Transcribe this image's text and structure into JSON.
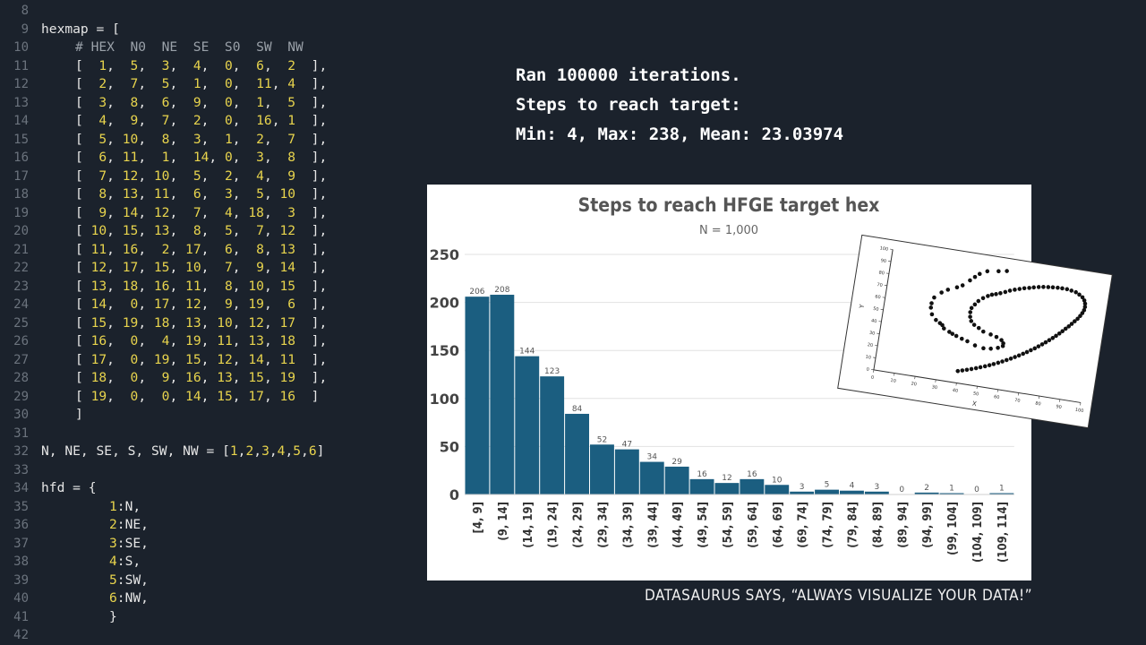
{
  "editor": {
    "line_start": 8,
    "lines": [
      {
        "t": "",
        "i": 0
      },
      {
        "t": "hexmap = [",
        "i": 0
      },
      {
        "t": "# HEX  N0  NE  SE  S0  SW  NW",
        "i": 1,
        "comment": true
      },
      {
        "t": "[  1,  5,  3,  4,  0,  6,  2  ],",
        "i": 1
      },
      {
        "t": "[  2,  7,  5,  1,  0,  11, 4  ],",
        "i": 1
      },
      {
        "t": "[  3,  8,  6,  9,  0,  1,  5  ],",
        "i": 1
      },
      {
        "t": "[  4,  9,  7,  2,  0,  16, 1  ],",
        "i": 1
      },
      {
        "t": "[  5, 10,  8,  3,  1,  2,  7  ],",
        "i": 1
      },
      {
        "t": "[  6, 11,  1,  14, 0,  3,  8  ],",
        "i": 1
      },
      {
        "t": "[  7, 12, 10,  5,  2,  4,  9  ],",
        "i": 1
      },
      {
        "t": "[  8, 13, 11,  6,  3,  5, 10  ],",
        "i": 1
      },
      {
        "t": "[  9, 14, 12,  7,  4, 18,  3  ],",
        "i": 1
      },
      {
        "t": "[ 10, 15, 13,  8,  5,  7, 12  ],",
        "i": 1
      },
      {
        "t": "[ 11, 16,  2, 17,  6,  8, 13  ],",
        "i": 1
      },
      {
        "t": "[ 12, 17, 15, 10,  7,  9, 14  ],",
        "i": 1
      },
      {
        "t": "[ 13, 18, 16, 11,  8, 10, 15  ],",
        "i": 1
      },
      {
        "t": "[ 14,  0, 17, 12,  9, 19,  6  ],",
        "i": 1
      },
      {
        "t": "[ 15, 19, 18, 13, 10, 12, 17  ],",
        "i": 1
      },
      {
        "t": "[ 16,  0,  4, 19, 11, 13, 18  ],",
        "i": 1
      },
      {
        "t": "[ 17,  0, 19, 15, 12, 14, 11  ],",
        "i": 1
      },
      {
        "t": "[ 18,  0,  9, 16, 13, 15, 19  ],",
        "i": 1
      },
      {
        "t": "[ 19,  0,  0, 14, 15, 17, 16  ]",
        "i": 1
      },
      {
        "t": "]",
        "i": 1
      },
      {
        "t": "",
        "i": 0
      },
      {
        "t": "N, NE, SE, S, SW, NW = [1,2,3,4,5,6]",
        "i": 0
      },
      {
        "t": "",
        "i": 0
      },
      {
        "t": "hfd = {",
        "i": 0
      },
      {
        "t": "1:N,",
        "i": 2
      },
      {
        "t": "2:NE,",
        "i": 2
      },
      {
        "t": "3:SE,",
        "i": 2
      },
      {
        "t": "4:S,",
        "i": 2
      },
      {
        "t": "5:SW,",
        "i": 2
      },
      {
        "t": "6:NW,",
        "i": 2
      },
      {
        "t": "}",
        "i": 2
      },
      {
        "t": "",
        "i": 0
      }
    ]
  },
  "output": {
    "line1": "Ran 100000 iterations.",
    "line2": "Steps to reach target:",
    "line3": "Min: 4, Max: 238, Mean: 23.03974"
  },
  "caption": "DATASAURUS SAYS, “ALWAYS VISUALIZE YOUR DATA!”",
  "colors": {
    "bar": "#1b5e80",
    "number": "#e8d44d",
    "text": "#e6e6e6",
    "background": "#1b222c"
  },
  "chart_data": [
    {
      "type": "bar",
      "title": "Steps to reach HFGE target hex",
      "subtitle": "N = 1,000",
      "categories": [
        "[4, 9]",
        "(9, 14]",
        "(14, 19]",
        "(19, 24]",
        "(24, 29]",
        "(29, 34]",
        "(34, 39]",
        "(39, 44]",
        "(44, 49]",
        "(49, 54]",
        "(54, 59]",
        "(59, 64]",
        "(64, 69]",
        "(69, 74]",
        "(74, 79]",
        "(79, 84]",
        "(84, 89]",
        "(89, 94]",
        "(94, 99]",
        "(99, 104]",
        "(104, 109]",
        "(109, 114]"
      ],
      "values": [
        206,
        208,
        144,
        123,
        84,
        52,
        47,
        34,
        29,
        16,
        12,
        16,
        10,
        3,
        5,
        4,
        3,
        0,
        2,
        1,
        0,
        1
      ],
      "yticks": [
        0,
        50,
        100,
        150,
        200,
        250
      ],
      "ylim": [
        0,
        250
      ],
      "grid": true
    },
    {
      "type": "scatter",
      "xlabel": "X",
      "ylabel": "Y",
      "xticks": [
        0,
        10,
        20,
        30,
        40,
        50,
        60,
        70,
        80,
        90,
        100
      ],
      "yticks": [
        0,
        10,
        20,
        30,
        40,
        50,
        60,
        70,
        80,
        90,
        100
      ],
      "xlim": [
        0,
        100
      ],
      "ylim": [
        0,
        100
      ],
      "points": [
        [
          55.4,
          97.2
        ],
        [
          51.5,
          96.0
        ],
        [
          46.2,
          94.5
        ],
        [
          42.8,
          91.4
        ],
        [
          40.8,
          88.3
        ],
        [
          38.7,
          84.9
        ],
        [
          35.6,
          79.9
        ],
        [
          33.1,
          77.6
        ],
        [
          29.0,
          74.5
        ],
        [
          26.2,
          71.4
        ],
        [
          23.1,
          66.4
        ],
        [
          22.3,
          61.4
        ],
        [
          22.3,
          57.8
        ],
        [
          23.3,
          52.5
        ],
        [
          25.6,
          48.4
        ],
        [
          27.7,
          46.4
        ],
        [
          29.0,
          45.1
        ],
        [
          30.0,
          42.6
        ],
        [
          32.8,
          40.5
        ],
        [
          34.4,
          39.3
        ],
        [
          36.4,
          38.1
        ],
        [
          39.2,
          36.5
        ],
        [
          42.0,
          35.2
        ],
        [
          45.9,
          32.8
        ],
        [
          50.1,
          31.6
        ],
        [
          53.6,
          32.2
        ],
        [
          56.9,
          33.8
        ],
        [
          59.1,
          35.9
        ],
        [
          59.1,
          38.1
        ],
        [
          58.0,
          40.5
        ],
        [
          55.4,
          42.4
        ],
        [
          52.5,
          43.7
        ],
        [
          48.8,
          45.1
        ],
        [
          46.4,
          47.4
        ],
        [
          44.0,
          49.4
        ],
        [
          42.3,
          52.1
        ],
        [
          41.5,
          55.4
        ],
        [
          41.2,
          59.1
        ],
        [
          41.5,
          62.7
        ],
        [
          42.8,
          66.0
        ],
        [
          44.2,
          69.2
        ],
        [
          46.2,
          72.2
        ],
        [
          48.3,
          74.5
        ],
        [
          50.1,
          76.1
        ],
        [
          52.0,
          77.1
        ],
        [
          54.0,
          78.4
        ],
        [
          56.2,
          80.0
        ],
        [
          58.3,
          81.7
        ],
        [
          60.5,
          83.1
        ],
        [
          62.7,
          84.3
        ],
        [
          64.9,
          85.5
        ],
        [
          67.2,
          86.4
        ],
        [
          69.3,
          87.4
        ],
        [
          71.6,
          88.3
        ],
        [
          73.8,
          89.0
        ],
        [
          76.1,
          89.5
        ],
        [
          78.3,
          89.9
        ],
        [
          80.6,
          90.2
        ],
        [
          82.8,
          90.3
        ],
        [
          85.1,
          90.2
        ],
        [
          87.3,
          89.6
        ],
        [
          89.5,
          88.9
        ],
        [
          91.3,
          87.4
        ],
        [
          93.0,
          85.6
        ],
        [
          94.1,
          83.3
        ],
        [
          94.7,
          80.8
        ],
        [
          94.9,
          78.1
        ],
        [
          94.7,
          75.4
        ],
        [
          94.1,
          72.8
        ],
        [
          93.3,
          70.2
        ],
        [
          92.3,
          67.6
        ],
        [
          91.1,
          65.2
        ],
        [
          89.9,
          62.7
        ],
        [
          88.7,
          60.3
        ],
        [
          87.4,
          58.0
        ],
        [
          86.1,
          55.6
        ],
        [
          84.8,
          53.3
        ],
        [
          83.4,
          51.0
        ],
        [
          82.0,
          48.8
        ],
        [
          80.5,
          46.6
        ],
        [
          79.0,
          44.4
        ],
        [
          77.5,
          42.3
        ],
        [
          75.9,
          40.2
        ],
        [
          74.3,
          38.1
        ],
        [
          72.6,
          36.1
        ],
        [
          70.9,
          34.1
        ],
        [
          69.2,
          32.2
        ],
        [
          67.4,
          30.3
        ],
        [
          65.6,
          28.5
        ],
        [
          63.8,
          26.7
        ],
        [
          61.9,
          25.0
        ],
        [
          60.0,
          23.3
        ],
        [
          58.1,
          21.7
        ],
        [
          56.1,
          20.1
        ],
        [
          54.2,
          18.6
        ],
        [
          52.2,
          17.2
        ],
        [
          50.1,
          15.8
        ],
        [
          48.1,
          14.5
        ],
        [
          46.0,
          13.2
        ],
        [
          43.9,
          12.0
        ],
        [
          41.8,
          10.9
        ],
        [
          39.7,
          9.8
        ]
      ]
    }
  ]
}
